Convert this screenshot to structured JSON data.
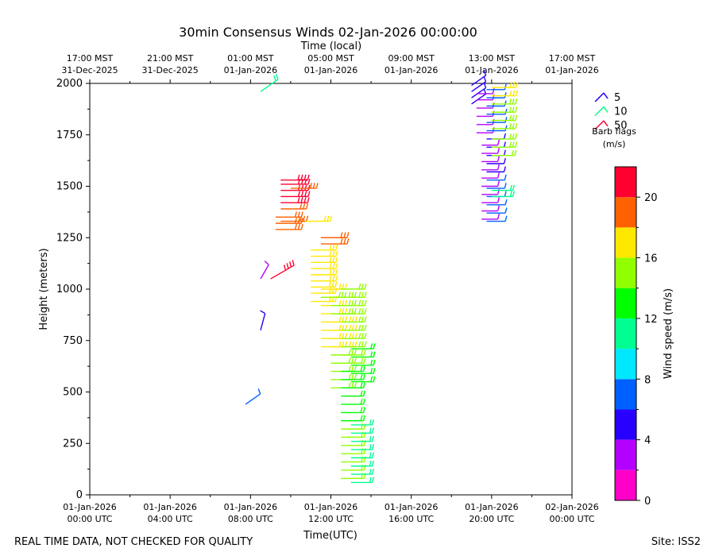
{
  "title": "30min Consensus Winds 02-Jan-2026 00:00:00",
  "top_axis_label": "Time (local)",
  "footer_left": "REAL TIME DATA, NOT CHECKED FOR QUALITY",
  "footer_right": "Site: ISS2",
  "legend": {
    "entries": [
      {
        "label": "5",
        "color": "#1a00ff"
      },
      {
        "label": "10",
        "color": "#00ff80"
      },
      {
        "label": "50",
        "color": "#ff0030"
      }
    ],
    "caption_line1": "Barb flags",
    "caption_line2": "(m/s)"
  },
  "colorbar": {
    "label": "Wind speed (m/s)",
    "ticks": [
      "0",
      "4",
      "8",
      "12",
      "16",
      "20"
    ],
    "tick_values": [
      0,
      4,
      8,
      12,
      16,
      20
    ],
    "range": [
      0,
      22
    ],
    "bins": [
      {
        "from": 0,
        "to": 2,
        "color": "#ff00c8"
      },
      {
        "from": 2,
        "to": 4,
        "color": "#b400ff"
      },
      {
        "from": 4,
        "to": 6,
        "color": "#2800ff"
      },
      {
        "from": 6,
        "to": 8,
        "color": "#0060ff"
      },
      {
        "from": 8,
        "to": 10,
        "color": "#00e8ff"
      },
      {
        "from": 10,
        "to": 12,
        "color": "#00ff90"
      },
      {
        "from": 12,
        "to": 14,
        "color": "#00ff00"
      },
      {
        "from": 14,
        "to": 16,
        "color": "#90ff00"
      },
      {
        "from": 16,
        "to": 18,
        "color": "#ffe800"
      },
      {
        "from": 18,
        "to": 20,
        "color": "#ff6000"
      },
      {
        "from": 20,
        "to": 22,
        "color": "#ff0030"
      }
    ]
  },
  "chart_data": {
    "type": "scatter",
    "subtype": "wind-barb time-height profile",
    "title": "30min Consensus Winds 02-Jan-2026 00:00:00",
    "xlabel": "Time(UTC)",
    "ylabel": "Height (meters)",
    "x_units": "hours since 01-Jan-2026 00:00 UTC",
    "xlim": [
      0,
      24
    ],
    "ylim": [
      0,
      2000
    ],
    "y_ticks": [
      0,
      250,
      500,
      750,
      1000,
      1250,
      1500,
      1750,
      2000
    ],
    "x_ticks": [
      {
        "x": 0,
        "line1": "01-Jan-2026",
        "line2": "00:00 UTC"
      },
      {
        "x": 4,
        "line1": "01-Jan-2026",
        "line2": "04:00 UTC"
      },
      {
        "x": 8,
        "line1": "01-Jan-2026",
        "line2": "08:00 UTC"
      },
      {
        "x": 12,
        "line1": "01-Jan-2026",
        "line2": "12:00 UTC"
      },
      {
        "x": 16,
        "line1": "01-Jan-2026",
        "line2": "16:00 UTC"
      },
      {
        "x": 20,
        "line1": "01-Jan-2026",
        "line2": "20:00 UTC"
      },
      {
        "x": 24,
        "line1": "02-Jan-2026",
        "line2": "00:00 UTC"
      }
    ],
    "top_ticks": [
      {
        "x": 0,
        "line1": "17:00 MST",
        "line2": "31-Dec-2025"
      },
      {
        "x": 4,
        "line1": "21:00 MST",
        "line2": "31-Dec-2025"
      },
      {
        "x": 8,
        "line1": "01:00 MST",
        "line2": "01-Jan-2026"
      },
      {
        "x": 12,
        "line1": "05:00 MST",
        "line2": "01-Jan-2026"
      },
      {
        "x": 16,
        "line1": "09:00 MST",
        "line2": "01-Jan-2026"
      },
      {
        "x": 20,
        "line1": "13:00 MST",
        "line2": "01-Jan-2026"
      },
      {
        "x": 24,
        "line1": "17:00 MST",
        "line2": "01-Jan-2026"
      }
    ],
    "barb_columns": [
      {
        "time": 7.75,
        "points": [
          [
            440,
            6,
            55
          ]
        ]
      },
      {
        "time": 8.5,
        "points": [
          [
            1960,
            11,
            55
          ],
          [
            1050,
            3,
            30
          ],
          [
            800,
            5,
            15
          ]
        ]
      },
      {
        "time": 9.0,
        "points": [
          [
            1050,
            20,
            60
          ]
        ]
      },
      {
        "time": 9.25,
        "points": [
          [
            1290,
            18,
            90
          ],
          [
            1320,
            18,
            90
          ],
          [
            1350,
            18,
            90
          ]
        ]
      },
      {
        "time": 9.5,
        "points": [
          [
            1390,
            18,
            90
          ],
          [
            1420,
            20,
            90
          ],
          [
            1450,
            21,
            90
          ],
          [
            1480,
            21,
            90
          ],
          [
            1510,
            21,
            90
          ],
          [
            1530,
            20,
            90
          ],
          [
            1330,
            18,
            90
          ]
        ]
      },
      {
        "time": 10.0,
        "points": [
          [
            1490,
            18,
            90
          ]
        ]
      },
      {
        "time": 10.75,
        "points": [
          [
            1330,
            16,
            90
          ]
        ]
      },
      {
        "time": 11.0,
        "points": [
          [
            940,
            16,
            90
          ],
          [
            980,
            16,
            90
          ],
          [
            1010,
            16,
            90
          ],
          [
            1040,
            17,
            90
          ],
          [
            1070,
            17,
            90
          ],
          [
            1100,
            17,
            90
          ],
          [
            1130,
            17,
            90
          ],
          [
            1160,
            17,
            90
          ],
          [
            1190,
            17,
            90
          ]
        ]
      },
      {
        "time": 11.5,
        "points": [
          [
            720,
            16,
            90
          ],
          [
            760,
            16,
            90
          ],
          [
            800,
            16,
            90
          ],
          [
            840,
            16,
            90
          ],
          [
            880,
            16,
            90
          ],
          [
            920,
            16,
            90
          ],
          [
            960,
            15,
            90
          ],
          [
            1000,
            16,
            90
          ],
          [
            1220,
            19,
            90
          ],
          [
            1250,
            19,
            90
          ]
        ]
      },
      {
        "time": 12.0,
        "points": [
          [
            520,
            15,
            90
          ],
          [
            560,
            15,
            90
          ],
          [
            600,
            15,
            90
          ],
          [
            640,
            15,
            90
          ],
          [
            680,
            15,
            90
          ],
          [
            720,
            16,
            90
          ],
          [
            760,
            16,
            90
          ],
          [
            800,
            16,
            90
          ],
          [
            840,
            16,
            90
          ],
          [
            880,
            15,
            90
          ],
          [
            920,
            15,
            90
          ],
          [
            960,
            15,
            90
          ]
        ]
      },
      {
        "time": 12.5,
        "points": [
          [
            80,
            14,
            90
          ],
          [
            120,
            14,
            90
          ],
          [
            160,
            14,
            90
          ],
          [
            200,
            14,
            90
          ],
          [
            240,
            14,
            90
          ],
          [
            280,
            14,
            90
          ],
          [
            320,
            14,
            90
          ],
          [
            360,
            13,
            90
          ],
          [
            400,
            13,
            90
          ],
          [
            440,
            13,
            90
          ],
          [
            480,
            13,
            90
          ],
          [
            520,
            13,
            90
          ],
          [
            560,
            13,
            90
          ],
          [
            600,
            13,
            90
          ],
          [
            640,
            14,
            90
          ],
          [
            680,
            14,
            90
          ],
          [
            720,
            15,
            90
          ],
          [
            760,
            15,
            90
          ],
          [
            800,
            15,
            90
          ],
          [
            840,
            15,
            90
          ],
          [
            880,
            15,
            90
          ],
          [
            920,
            15,
            90
          ],
          [
            960,
            15,
            90
          ],
          [
            1000,
            15,
            90
          ]
        ]
      },
      {
        "time": 13.0,
        "points": [
          [
            60,
            11,
            90
          ],
          [
            100,
            11,
            90
          ],
          [
            140,
            11,
            90
          ],
          [
            180,
            11,
            90
          ],
          [
            220,
            11,
            90
          ],
          [
            260,
            11,
            90
          ],
          [
            300,
            11,
            90
          ],
          [
            340,
            11,
            90
          ],
          [
            550,
            13,
            90
          ],
          [
            590,
            13,
            90
          ],
          [
            630,
            13,
            90
          ],
          [
            670,
            13,
            90
          ],
          [
            710,
            13,
            90
          ]
        ]
      },
      {
        "time": 19.0,
        "points": [
          [
            1900,
            5,
            55
          ],
          [
            1930,
            5,
            55
          ],
          [
            1960,
            5,
            55
          ],
          [
            1990,
            5,
            55
          ]
        ]
      },
      {
        "time": 19.25,
        "points": [
          [
            1760,
            3,
            90
          ],
          [
            1800,
            3,
            90
          ],
          [
            1840,
            3,
            90
          ],
          [
            1880,
            3,
            90
          ],
          [
            1920,
            3,
            90
          ],
          [
            1950,
            3,
            90
          ]
        ]
      },
      {
        "time": 19.5,
        "points": [
          [
            1340,
            3,
            90
          ],
          [
            1380,
            3,
            90
          ],
          [
            1420,
            3,
            90
          ],
          [
            1460,
            3,
            90
          ],
          [
            1500,
            3,
            90
          ],
          [
            1540,
            3,
            90
          ],
          [
            1580,
            3,
            90
          ],
          [
            1620,
            3,
            90
          ],
          [
            1660,
            3,
            90
          ],
          [
            1700,
            3,
            90
          ]
        ]
      },
      {
        "time": 19.75,
        "points": [
          [
            1330,
            7,
            90
          ],
          [
            1370,
            7,
            90
          ],
          [
            1410,
            7,
            90
          ],
          [
            1450,
            6,
            90
          ],
          [
            1490,
            6,
            90
          ],
          [
            1530,
            6,
            90
          ],
          [
            1570,
            5,
            90
          ],
          [
            1610,
            5,
            90
          ],
          [
            1650,
            5,
            90
          ],
          [
            1690,
            5,
            90
          ],
          [
            1730,
            5,
            90
          ],
          [
            1770,
            7,
            90
          ],
          [
            1810,
            7,
            90
          ],
          [
            1850,
            7,
            90
          ],
          [
            1890,
            6,
            90
          ],
          [
            1930,
            6,
            90
          ],
          [
            1970,
            6,
            90
          ]
        ]
      },
      {
        "time": 20.0,
        "points": [
          [
            1450,
            11,
            90
          ],
          [
            1480,
            11,
            90
          ],
          [
            1650,
            14,
            90
          ],
          [
            1690,
            15,
            90
          ],
          [
            1730,
            15,
            90
          ],
          [
            1780,
            15,
            90
          ],
          [
            1820,
            15,
            90
          ],
          [
            1860,
            15,
            90
          ],
          [
            1900,
            15,
            90
          ],
          [
            1940,
            16,
            90
          ],
          [
            1980,
            16,
            90
          ]
        ]
      }
    ]
  }
}
